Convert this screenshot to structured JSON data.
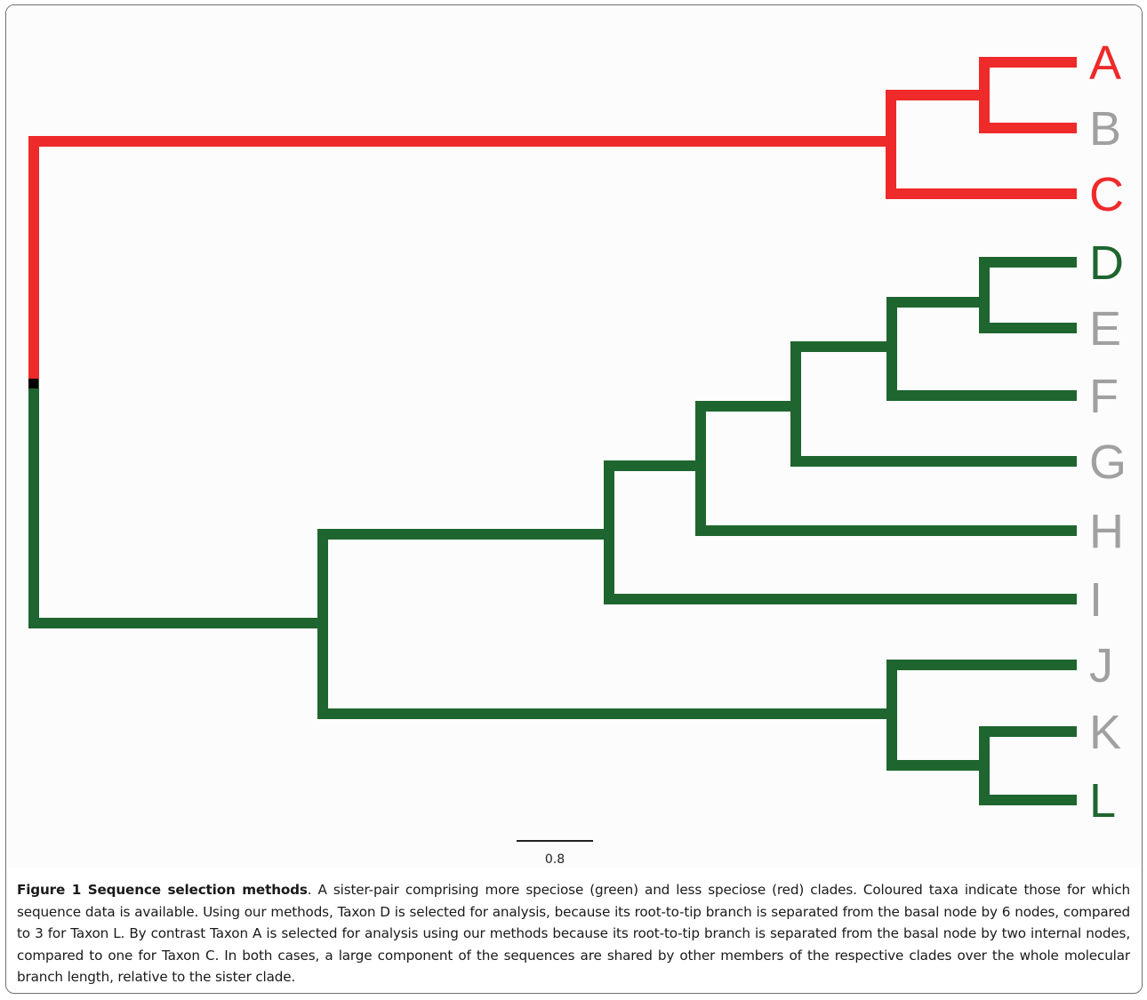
{
  "tree": {
    "tips": [
      {
        "name": "A",
        "has_data": true,
        "clade": "less_speciose"
      },
      {
        "name": "B",
        "has_data": false,
        "clade": "less_speciose"
      },
      {
        "name": "C",
        "has_data": true,
        "clade": "less_speciose"
      },
      {
        "name": "D",
        "has_data": true,
        "clade": "more_speciose"
      },
      {
        "name": "E",
        "has_data": false,
        "clade": "more_speciose"
      },
      {
        "name": "F",
        "has_data": false,
        "clade": "more_speciose"
      },
      {
        "name": "G",
        "has_data": false,
        "clade": "more_speciose"
      },
      {
        "name": "H",
        "has_data": false,
        "clade": "more_speciose"
      },
      {
        "name": "I",
        "has_data": false,
        "clade": "more_speciose"
      },
      {
        "name": "J",
        "has_data": false,
        "clade": "more_speciose"
      },
      {
        "name": "K",
        "has_data": false,
        "clade": "more_speciose"
      },
      {
        "name": "L",
        "has_data": true,
        "clade": "more_speciose"
      }
    ],
    "colors": {
      "less_speciose": "#ee2a2a",
      "more_speciose": "#1f6530",
      "no_data": "#a0a0a0",
      "root_node": "#000000"
    },
    "scale_bar": {
      "label": "0.8"
    }
  },
  "caption": {
    "label": "Figure 1 Sequence selection methods",
    "text": ". A sister-pair comprising more speciose (green) and less speciose (red) clades. Coloured taxa indicate those for which sequence data is available. Using our methods, Taxon D is selected for analysis, because its root-to-tip branch is separated from the basal node by 6 nodes, compared to 3 for Taxon L. By contrast Taxon A is selected for analysis using our methods because its root-to-tip branch is separated from the basal node by two internal nodes, compared to one for Taxon C. In both cases, a large component of the sequences are shared by other members of the respective clades over the whole molecular branch length, relative to the sister clade."
  }
}
